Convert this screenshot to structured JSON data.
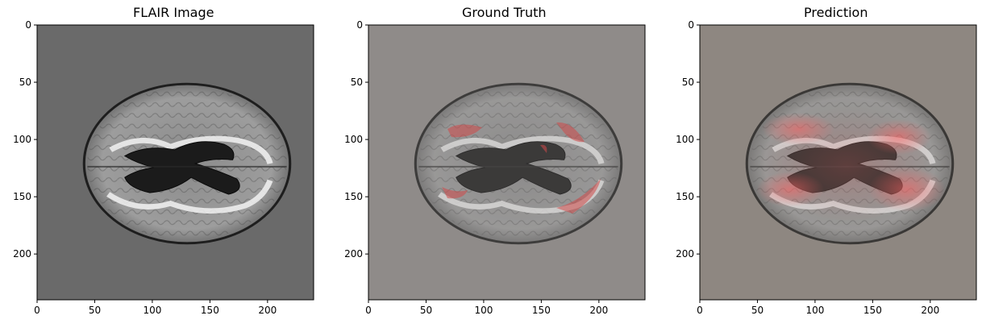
{
  "panels": [
    {
      "title": "FLAIR Image",
      "bg": "#6a6a6a",
      "overlay": "none"
    },
    {
      "title": "Ground Truth",
      "bg": "#8f8b89",
      "overlay": "ground-truth-mask"
    },
    {
      "title": "Prediction",
      "bg": "#8e8781",
      "overlay": "prediction-heatmap"
    }
  ],
  "axes": {
    "x_ticks": [
      "0",
      "50",
      "100",
      "150",
      "200"
    ],
    "y_ticks": [
      "0",
      "50",
      "100",
      "150",
      "200"
    ]
  },
  "colors": {
    "brain_tissue": "#9a9a9a",
    "ventricle": "#1a1a1a",
    "lesion_highlight": "#f0f0f0",
    "mask_red": "#d04a4a",
    "heat_red": "#e05050"
  }
}
